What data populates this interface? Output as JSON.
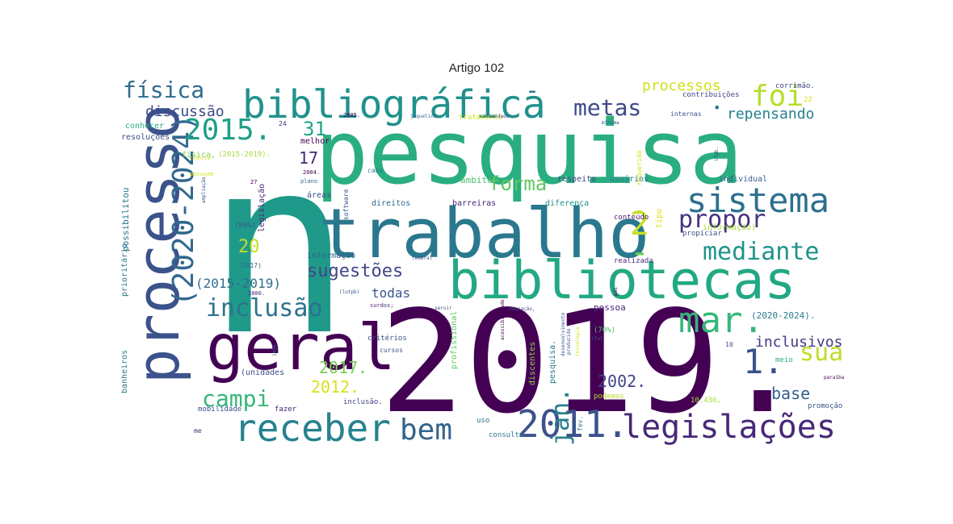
{
  "title": "Artigo 102",
  "words": [
    {
      "text": "n",
      "color": "#1f9a8a"
    },
    {
      "text": "pesquisa",
      "color": "#2aae80"
    },
    {
      "text": "2019.",
      "color": "#440154"
    },
    {
      "text": "trabalho",
      "color": "#2a788e"
    },
    {
      "text": "bibliotecas",
      "color": "#22a884"
    },
    {
      "text": "bibliográfica",
      "color": "#21918c"
    },
    {
      "text": "processo",
      "color": "#3b528b"
    },
    {
      "text": "geral",
      "color": "#440154"
    },
    {
      "text": "sistema",
      "color": "#2d708e"
    },
    {
      "text": "receber",
      "color": "#26828e"
    },
    {
      "text": "2011.",
      "color": "#3b528b"
    },
    {
      "text": "legislações",
      "color": "#482878"
    },
    {
      "text": "(2020-2024)",
      "color": "#31688e"
    },
    {
      "text": "2015.",
      "color": "#1f9e89"
    },
    {
      "text": "mar.",
      "color": "#35b779"
    },
    {
      "text": "inclusão",
      "color": "#2c728e"
    },
    {
      "text": "bem",
      "color": "#33638d"
    },
    {
      "text": "propor",
      "color": "#46327e"
    },
    {
      "text": "mediante",
      "color": "#20928c"
    },
    {
      "text": "metas",
      "color": "#3e4a89"
    },
    {
      "text": "foi",
      "color": "#b5de2b"
    },
    {
      "text": "1.",
      "color": "#3b528b"
    },
    {
      "text": "sua",
      "color": "#bddf26"
    },
    {
      "text": "campi",
      "color": "#35b779"
    },
    {
      "text": "jan.",
      "color": "#277f8e"
    },
    {
      "text": "física",
      "color": "#2f6b8e"
    },
    {
      "text": "forma",
      "color": "#5ec962"
    },
    {
      "text": "2",
      "color": "#c8e020"
    },
    {
      "text": "31",
      "color": "#20a386"
    },
    {
      "text": "sugestões",
      "color": "#404688"
    },
    {
      "text": "repensando",
      "color": "#26828e"
    },
    {
      "text": "processos",
      "color": "#d0e11c"
    },
    {
      "text": "discussão",
      "color": "#3f4889"
    },
    {
      "text": "2017.",
      "color": "#7ad151"
    },
    {
      "text": "2012.",
      "color": "#d8e219"
    },
    {
      "text": "2002.",
      "color": "#414487"
    },
    {
      "text": "base",
      "color": "#355f8d"
    },
    {
      "text": "inclusivos",
      "color": "#443983"
    },
    {
      "text": "(2015-2019)",
      "color": "#2e6f8e"
    },
    {
      "text": "todas",
      "color": "#3a548c"
    },
    {
      "text": "17",
      "color": "#482475"
    },
    {
      "text": "20",
      "color": "#c0df25"
    },
    {
      "text": "(2020-2024).",
      "color": "#277f8e"
    },
    {
      "text": "conhecer",
      "color": "#29af7f"
    },
    {
      "text": "resoluções",
      "color": "#3e4c8a"
    },
    {
      "text": "física,",
      "color": "#7fd34e"
    },
    {
      "text": "(2015-2019).",
      "color": "#a2da37"
    },
    {
      "text": "melhor",
      "color": "#440154"
    },
    {
      "text": "direitos",
      "color": "#31688e"
    },
    {
      "text": "barreiras",
      "color": "#482173"
    },
    {
      "text": "diferença",
      "color": "#21918c"
    },
    {
      "text": "usuários",
      "color": "#2a788e"
    },
    {
      "text": "individual",
      "color": "#365c8d"
    },
    {
      "text": "conteúdo",
      "color": "#481a6c"
    },
    {
      "text": "respeito",
      "color": "#3f4788"
    },
    {
      "text": "âmbito",
      "color": "#4ac16d"
    },
    {
      "text": "informação)",
      "color": "#a8db34"
    },
    {
      "text": "propiciar",
      "color": "#3b528b"
    },
    {
      "text": "contribuições",
      "color": "#414487"
    },
    {
      "text": "corrimão.",
      "color": "#404588"
    },
    {
      "text": "internas",
      "color": "#3b528b"
    },
    {
      "text": "tratamento",
      "color": "#d2e21b"
    },
    {
      "text": "2005.",
      "color": "#440154"
    },
    {
      "text": "cabe",
      "color": "#2a788e"
    },
    {
      "text": "áreas",
      "color": "#3b528b"
    },
    {
      "text": "informação",
      "color": "#33638d"
    },
    {
      "text": "realizada",
      "color": "#472d7b"
    },
    {
      "text": "pessoa",
      "color": "#482878"
    },
    {
      "text": "critérios",
      "color": "#3b528b"
    },
    {
      "text": "cursos",
      "color": "#38598c"
    },
    {
      "text": "(unidades",
      "color": "#3b528b"
    },
    {
      "text": "inclusão.",
      "color": "#404588"
    },
    {
      "text": "mobilidade",
      "color": "#3b528b"
    },
    {
      "text": "fazer",
      "color": "#482475"
    },
    {
      "text": "uso",
      "color": "#2a788e"
    },
    {
      "text": "consulta",
      "color": "#2a788e"
    },
    {
      "text": "podemos",
      "color": "#b8de29"
    },
    {
      "text": "meio",
      "color": "#27ad81"
    },
    {
      "text": "promoção",
      "color": "#3b528b"
    },
    {
      "text": "10.436,",
      "color": "#a5db36"
    },
    {
      "text": "(70%)",
      "color": "#4ac16d"
    },
    {
      "text": "(80%)",
      "color": "#38598c"
    },
    {
      "text": "(2017)",
      "color": "#31688e"
    },
    {
      "text": "legislação",
      "color": "#482878"
    },
    {
      "text": "possibilitou",
      "color": "#2a788e"
    },
    {
      "text": "prioritário",
      "color": "#2a788e"
    },
    {
      "text": "banheiros",
      "color": "#2a788e"
    },
    {
      "text": "profissional",
      "color": "#5ec962"
    },
    {
      "text": "discentes",
      "color": "#86d549"
    },
    {
      "text": "pesquisa.",
      "color": "#2a788e"
    },
    {
      "text": "surdos;",
      "color": "#482878"
    },
    {
      "text": "software",
      "color": "#3b528b"
    },
    {
      "text": "acessibilidade",
      "color": "#440154"
    },
    {
      "text": "tipo",
      "color": "#d8e219"
    },
    {
      "text": "requerida",
      "color": "#d8e219"
    },
    {
      "text": "possuem",
      "color": "#d8e219"
    },
    {
      "text": "fev.",
      "color": "#2a788e"
    },
    {
      "text": "2004.",
      "color": "#440154"
    },
    {
      "text": "plano",
      "color": "#31688e"
    },
    {
      "text": "24",
      "color": "#482878"
    },
    {
      "text": "27",
      "color": "#440154"
    },
    {
      "text": "22",
      "color": "#d8e219"
    },
    {
      "text": "10",
      "color": "#3b528b"
    },
    {
      "text": "me",
      "color": "#482878"
    },
    {
      "text": "2000.",
      "color": "#482878"
    },
    {
      "text": "federal",
      "color": "#3b528b"
    },
    {
      "text": "muitas",
      "color": "#3b528b"
    },
    {
      "text": "jaqueline",
      "color": "#31688e"
    },
    {
      "text": "paraíba",
      "color": "#440154"
    },
    {
      "text": "educação,",
      "color": "#3b528b"
    },
    {
      "text": "ciência",
      "color": "#d8e219"
    },
    {
      "text": "tecnologia",
      "color": "#d8e219"
    },
    {
      "text": "desenvolvimento",
      "color": "#3b528b"
    },
    {
      "text": "servir",
      "color": "#3b528b"
    },
    {
      "text": "atividade",
      "color": "#3b528b"
    },
    {
      "text": "ampliação",
      "color": "#3b528b"
    },
    {
      "text": "pdi",
      "color": "#440154"
    },
    {
      "text": "ifpb.",
      "color": "#3b528b"
    },
    {
      "text": "(lutpb)",
      "color": "#3b528b"
    },
    {
      "text": "1996",
      "color": "#3b528b"
    },
    {
      "text": "mínima",
      "color": "#3b528b"
    },
    {
      "text": "produzido",
      "color": "#3b528b"
    },
    {
      "text": "ifal",
      "color": "#3b528b"
    },
    {
      "text": "-",
      "color": "#2a788e"
    },
    {
      "text": "-",
      "color": "#6ece58"
    },
    {
      "text": "•",
      "color": "#2a788e"
    }
  ]
}
